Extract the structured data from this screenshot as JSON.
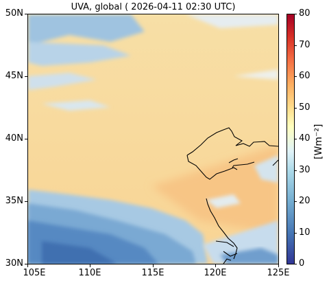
{
  "title": "UVA, global ( 2026-04-11 02:30 UTC)",
  "map": {
    "lon_range": [
      105,
      125
    ],
    "lat_range": [
      30,
      50
    ],
    "x_ticks": [
      "105E",
      "110E",
      "115E",
      "120E",
      "125E"
    ],
    "y_ticks": [
      "50N",
      "45N",
      "40N",
      "35N",
      "30N"
    ],
    "coastline_color": "#000000",
    "high_irradiance_color": "#f7d89a",
    "cloud_color": "#7fb0d8",
    "dense_cloud_color": "#3f74b6"
  },
  "colorbar": {
    "min": 0,
    "max": 80,
    "ticks": [
      "80",
      "70",
      "60",
      "50",
      "40",
      "30",
      "20",
      "10",
      "0"
    ],
    "unit_label": "[Wm⁻²]",
    "colormap": "RdYlBu_r"
  }
}
